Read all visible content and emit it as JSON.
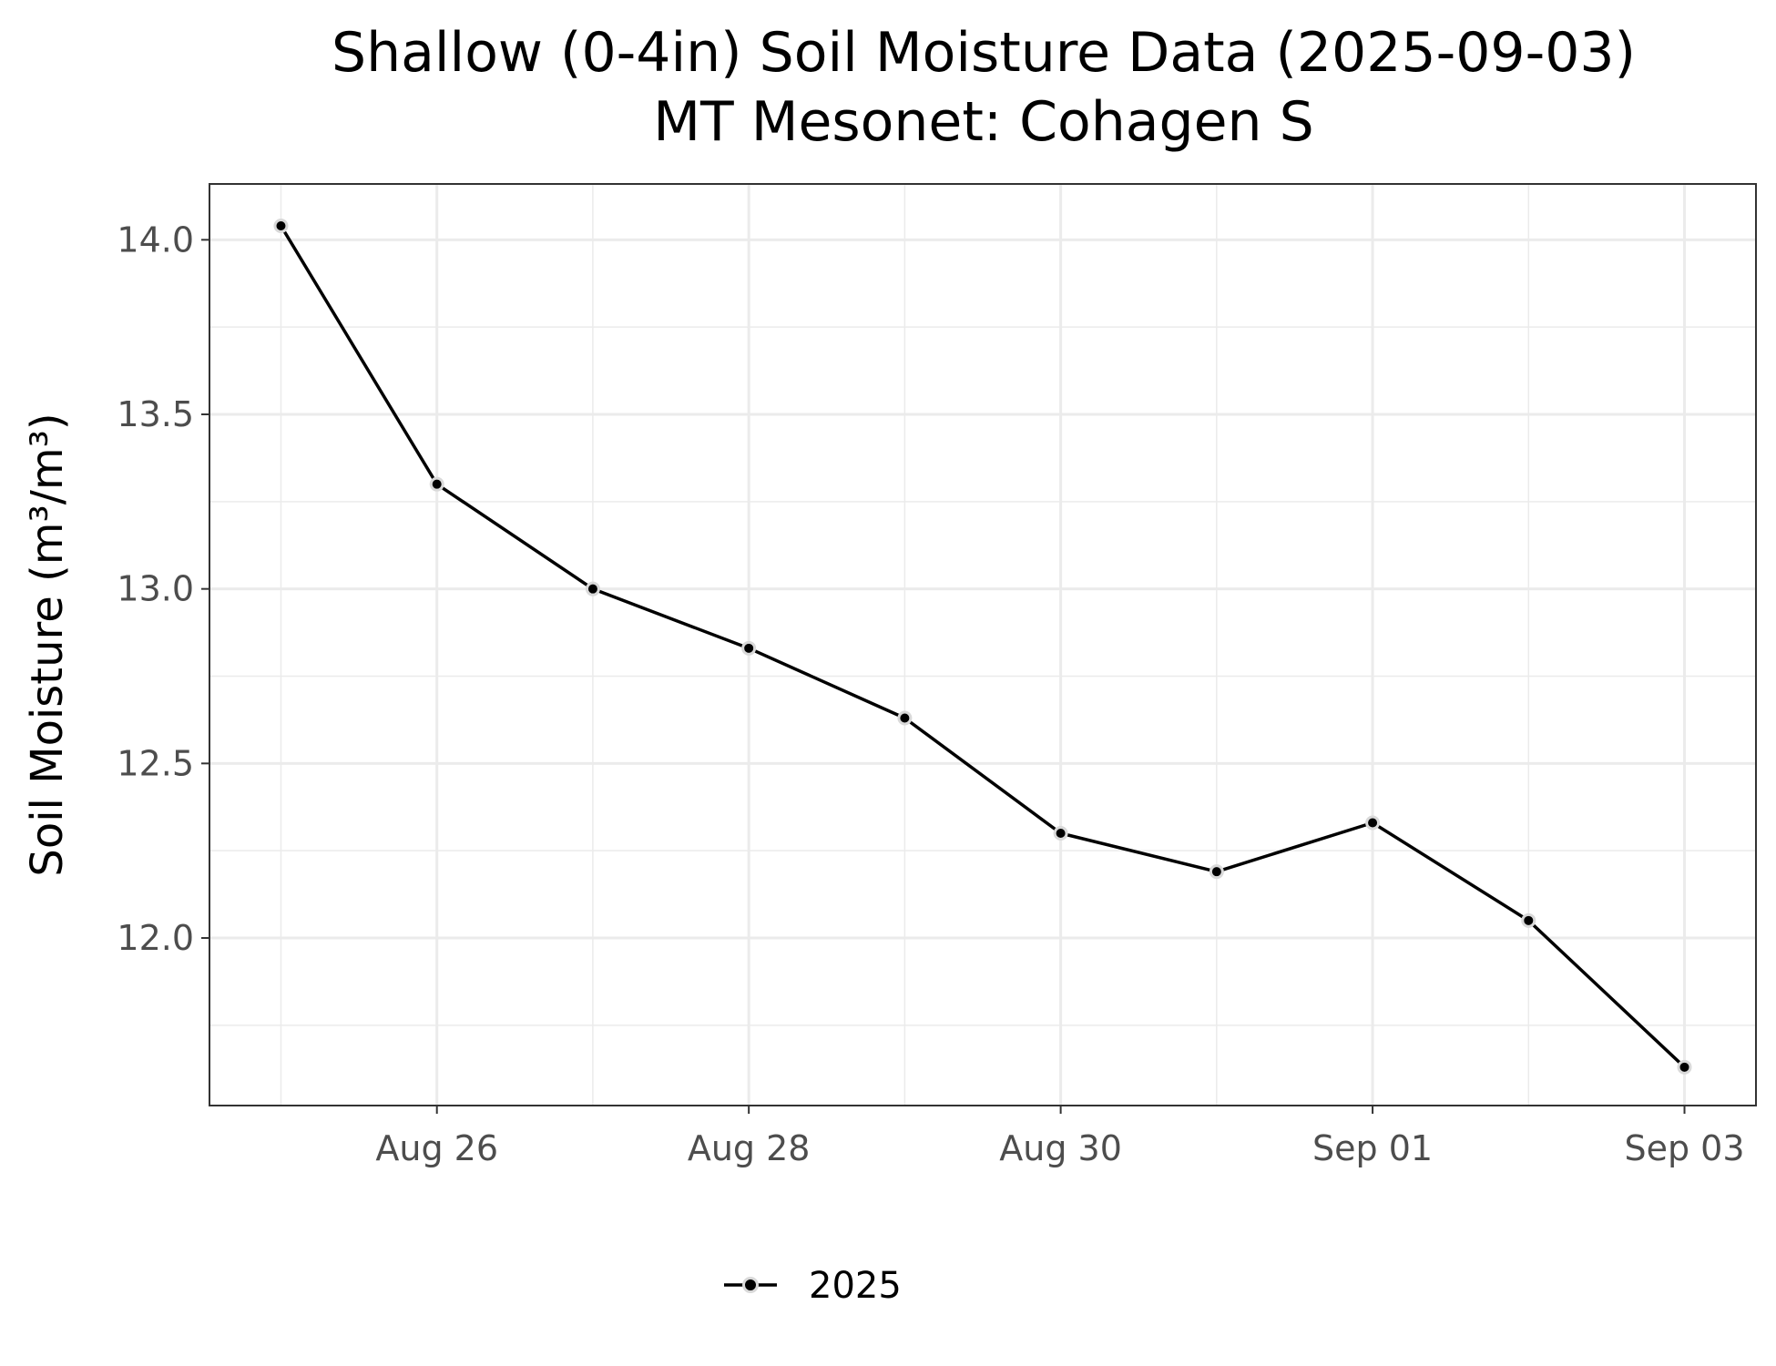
{
  "chart_data": {
    "type": "line",
    "title": "Shallow (0-4in) Soil Moisture Data (2025-09-03)",
    "subtitle": "MT Mesonet: Cohagen S",
    "xlabel": "",
    "ylabel": "Soil Moisture (m³/m³)",
    "x_ticks": [
      {
        "date": "2025-08-26",
        "label": "Aug 26"
      },
      {
        "date": "2025-08-28",
        "label": "Aug 28"
      },
      {
        "date": "2025-08-30",
        "label": "Aug 30"
      },
      {
        "date": "2025-09-01",
        "label": "Sep 01"
      },
      {
        "date": "2025-09-03",
        "label": "Sep 03"
      }
    ],
    "y_ticks": [
      "12.0",
      "12.5",
      "13.0",
      "13.5",
      "14.0"
    ],
    "xlim": [
      "2025-08-24T13:00",
      "2025-09-03T11:00"
    ],
    "ylim": [
      11.52,
      14.16
    ],
    "grid": true,
    "legend_position": "bottom",
    "series": [
      {
        "name": "2025",
        "color": "#000000",
        "x": [
          "2025-08-25",
          "2025-08-26",
          "2025-08-27",
          "2025-08-28",
          "2025-08-29",
          "2025-08-30",
          "2025-08-31",
          "2025-09-01",
          "2025-09-02",
          "2025-09-03"
        ],
        "y": [
          14.04,
          13.3,
          13.0,
          12.83,
          12.63,
          12.3,
          12.19,
          12.33,
          12.05,
          11.63
        ]
      }
    ]
  }
}
